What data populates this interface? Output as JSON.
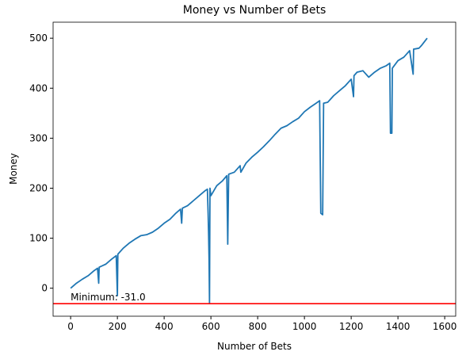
{
  "chart_data": {
    "type": "line",
    "title": "Money vs Number of Bets",
    "xlabel": "Number of Bets",
    "ylabel": "Money",
    "x": [
      0,
      25,
      50,
      75,
      100,
      115,
      120,
      122,
      150,
      175,
      195,
      200,
      202,
      225,
      250,
      275,
      300,
      325,
      350,
      375,
      400,
      425,
      450,
      470,
      475,
      478,
      500,
      525,
      550,
      575,
      585,
      588,
      590,
      592,
      594,
      596,
      600,
      625,
      650,
      668,
      672,
      676,
      700,
      725,
      728,
      750,
      775,
      800,
      825,
      850,
      875,
      900,
      925,
      950,
      975,
      1000,
      1025,
      1050,
      1065,
      1070,
      1078,
      1082,
      1100,
      1125,
      1150,
      1175,
      1200,
      1210,
      1212,
      1225,
      1250,
      1275,
      1300,
      1325,
      1350,
      1365,
      1368,
      1374,
      1376,
      1400,
      1425,
      1450,
      1465,
      1467,
      1490,
      1500,
      1525
    ],
    "values": [
      0,
      10,
      18,
      25,
      35,
      40,
      10,
      42,
      48,
      58,
      65,
      -15,
      68,
      80,
      90,
      98,
      105,
      107,
      112,
      120,
      130,
      138,
      150,
      158,
      130,
      160,
      165,
      175,
      185,
      195,
      198,
      150,
      110,
      60,
      -31,
      200,
      185,
      205,
      215,
      225,
      88,
      228,
      232,
      245,
      232,
      250,
      262,
      272,
      283,
      295,
      308,
      320,
      325,
      333,
      340,
      353,
      362,
      370,
      375,
      150,
      147,
      370,
      372,
      385,
      395,
      405,
      418,
      383,
      425,
      432,
      435,
      422,
      432,
      440,
      445,
      450,
      310,
      310,
      440,
      455,
      462,
      475,
      428,
      478,
      480,
      485,
      500
    ],
    "color": "#1f77b4",
    "hline": {
      "value": -31,
      "label": "Minimum: -31.0",
      "color": "#ff0000"
    },
    "xlim": [
      -75,
      1647
    ],
    "ylim": [
      -56,
      532
    ],
    "xticks": [
      0,
      200,
      400,
      600,
      800,
      1000,
      1200,
      1400,
      1600
    ],
    "yticks": [
      0,
      100,
      200,
      300,
      400,
      500
    ],
    "grid": false
  }
}
